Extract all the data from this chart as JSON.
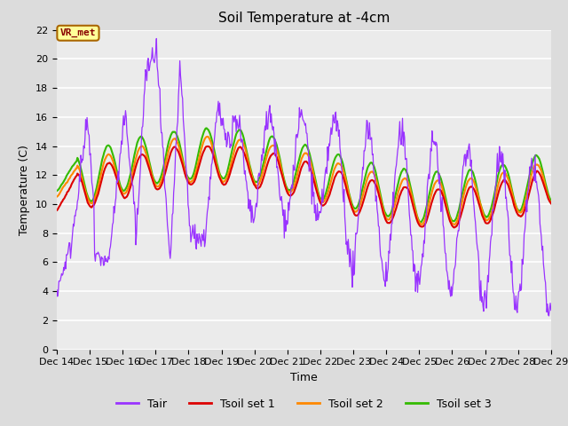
{
  "title": "Soil Temperature at -4cm",
  "xlabel": "Time",
  "ylabel": "Temperature (C)",
  "ylim": [
    0,
    22
  ],
  "yticks": [
    0,
    2,
    4,
    6,
    8,
    10,
    12,
    14,
    16,
    18,
    20,
    22
  ],
  "x_tick_labels": [
    "Dec 14",
    "Dec 15",
    "Dec 16",
    "Dec 17",
    "Dec 18",
    "Dec 19",
    "Dec 20",
    "Dec 21",
    "Dec 22",
    "Dec 23",
    "Dec 24",
    "Dec 25",
    "Dec 26",
    "Dec 27",
    "Dec 28",
    "Dec 29"
  ],
  "legend_labels": [
    "Tair",
    "Tsoil set 1",
    "Tsoil set 2",
    "Tsoil set 3"
  ],
  "colors": {
    "Tair": "#9933FF",
    "Tsoil1": "#DD0000",
    "Tsoil2": "#FF8800",
    "Tsoil3": "#33BB00"
  },
  "annotation_text": "VR_met",
  "annotation_bg": "#FFFF99",
  "annotation_border": "#AA6600",
  "annotation_textcolor": "#880000",
  "bg_color": "#DCDCDC",
  "plot_bg_color": "#EBEBEB",
  "grid_color": "#FFFFFF",
  "title_fontsize": 11,
  "axis_fontsize": 9,
  "tick_fontsize": 8,
  "legend_fontsize": 9
}
